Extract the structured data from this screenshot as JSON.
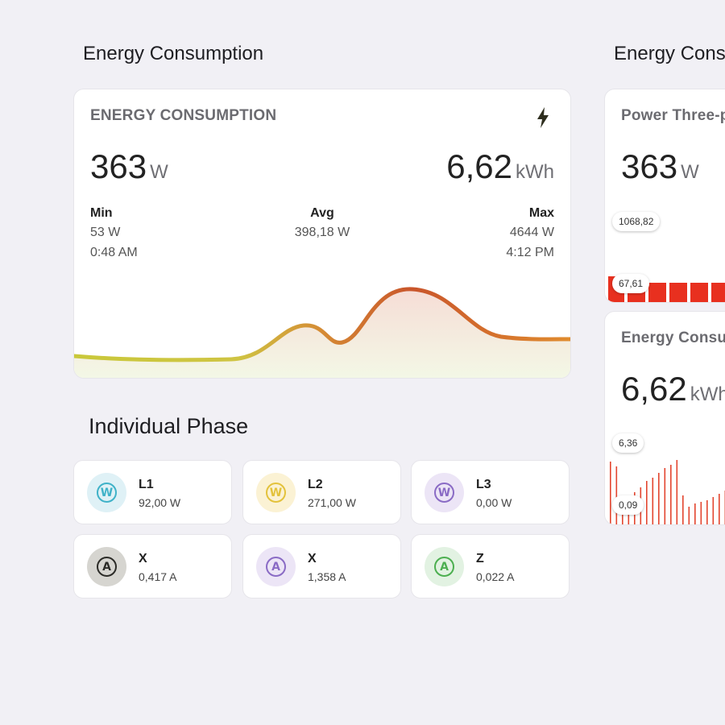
{
  "left": {
    "section_title": "Energy Consumption",
    "card": {
      "label": "ENERGY CONSUMPTION",
      "power_value": "363",
      "power_unit": "W",
      "energy_value": "6,62",
      "energy_unit": "kWh",
      "min_label": "Min",
      "min_value": "53 W",
      "min_time": "0:48 AM",
      "avg_label": "Avg",
      "avg_value": "398,18 W",
      "max_label": "Max",
      "max_value": "4644 W",
      "max_time": "4:12 PM",
      "icon": "lightning-bolt-icon"
    },
    "phase_title": "Individual Phase",
    "phases": [
      {
        "name": "L1",
        "value": "92,00 W",
        "glyph": "W",
        "icon": "watt-icon",
        "color": "#3fb2c8",
        "bg": "#dff1f6"
      },
      {
        "name": "L2",
        "value": "271,00 W",
        "glyph": "W",
        "icon": "watt-icon",
        "color": "#e3c23c",
        "bg": "#fbf2d4"
      },
      {
        "name": "L3",
        "value": "0,00 W",
        "glyph": "W",
        "icon": "watt-icon",
        "color": "#8a6bc5",
        "bg": "#ece5f6"
      },
      {
        "name": "X",
        "value": "0,417 A",
        "glyph": "A",
        "icon": "ampere-icon",
        "color": "#2c2c28",
        "bg": "#d6d5d0"
      },
      {
        "name": "X",
        "value": "1,358 A",
        "glyph": "A",
        "icon": "ampere-icon",
        "color": "#8a6bc5",
        "bg": "#ece5f6"
      },
      {
        "name": "Z",
        "value": "0,022 A",
        "glyph": "A",
        "icon": "ampere-icon",
        "color": "#4caf50",
        "bg": "#e2f2e2"
      }
    ]
  },
  "right": {
    "section_title": "Energy Cons",
    "card1": {
      "label": "Power Three-p",
      "value": "363",
      "unit": "W",
      "pill_top": "1068,82",
      "pill_bottom": "67,61"
    },
    "card2": {
      "label": "Energy Consu",
      "value": "6,62",
      "unit": "kWh",
      "pill_top": "6,36",
      "pill_bottom": "0,09"
    }
  }
}
